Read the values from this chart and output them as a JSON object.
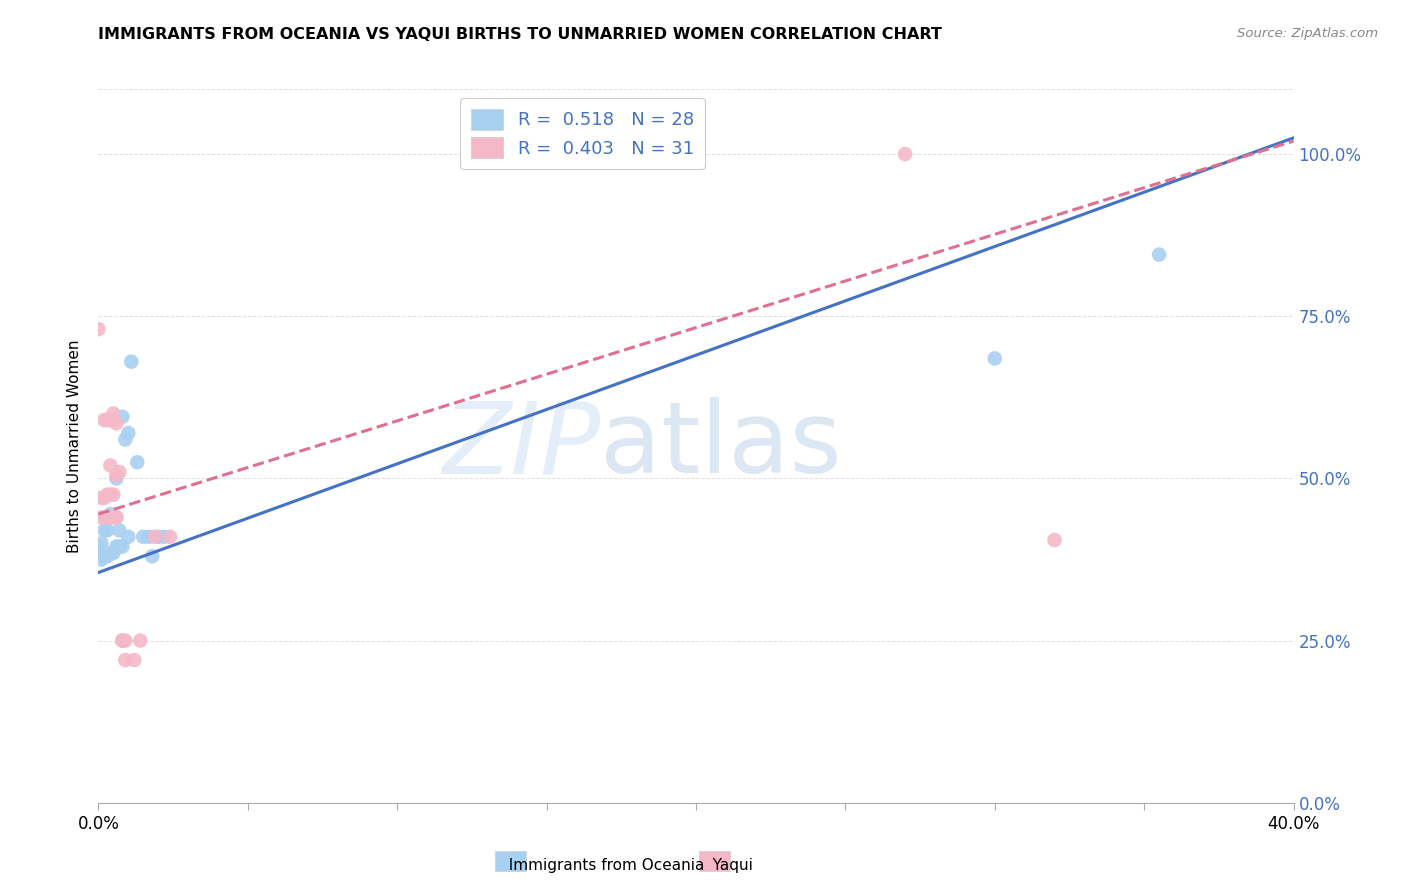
{
  "title": "IMMIGRANTS FROM OCEANIA VS YAQUI BIRTHS TO UNMARRIED WOMEN CORRELATION CHART",
  "source": "Source: ZipAtlas.com",
  "xlabel_bottom": "Immigrants from Oceania",
  "xlabel_bottom2": "Yaqui",
  "ylabel": "Births to Unmarried Women",
  "xmin": 0.0,
  "xmax": 0.4,
  "ymin": 0.0,
  "ymax": 1.1,
  "watermark_zip": "ZIP",
  "watermark_atlas": "atlas",
  "blue_color": "#a8d0f0",
  "pink_color": "#f5b8c8",
  "blue_line_color": "#4472c4",
  "pink_line_color": "#e07090",
  "legend_R1": "R =  0.518",
  "legend_N1": "N = 28",
  "legend_R2": "R =  0.403",
  "legend_N2": "N = 31",
  "blue_scatter_x": [
    0.0,
    0.001,
    0.001,
    0.002,
    0.002,
    0.003,
    0.003,
    0.004,
    0.004,
    0.005,
    0.006,
    0.006,
    0.007,
    0.007,
    0.008,
    0.008,
    0.009,
    0.01,
    0.01,
    0.011,
    0.013,
    0.015,
    0.017,
    0.018,
    0.02,
    0.022,
    0.3,
    0.355
  ],
  "blue_scatter_y": [
    0.395,
    0.375,
    0.4,
    0.38,
    0.42,
    0.38,
    0.42,
    0.385,
    0.445,
    0.385,
    0.395,
    0.5,
    0.42,
    0.395,
    0.395,
    0.595,
    0.56,
    0.57,
    0.41,
    0.68,
    0.525,
    0.41,
    0.41,
    0.38,
    0.41,
    0.41,
    0.685,
    0.845
  ],
  "pink_scatter_x": [
    0.0,
    0.001,
    0.001,
    0.002,
    0.002,
    0.002,
    0.003,
    0.003,
    0.003,
    0.004,
    0.004,
    0.004,
    0.004,
    0.005,
    0.005,
    0.005,
    0.006,
    0.006,
    0.006,
    0.006,
    0.007,
    0.008,
    0.008,
    0.009,
    0.009,
    0.012,
    0.014,
    0.019,
    0.024,
    0.27,
    0.32
  ],
  "pink_scatter_y": [
    0.73,
    0.44,
    0.47,
    0.44,
    0.47,
    0.59,
    0.44,
    0.475,
    0.59,
    0.59,
    0.44,
    0.475,
    0.52,
    0.6,
    0.44,
    0.475,
    0.44,
    0.505,
    0.585,
    0.44,
    0.51,
    0.25,
    0.25,
    0.25,
    0.22,
    0.22,
    0.25,
    0.41,
    0.41,
    1.0,
    0.405
  ],
  "blue_trend_x": [
    0.0,
    0.4
  ],
  "blue_trend_y": [
    0.355,
    1.025
  ],
  "pink_trend_x": [
    0.0,
    0.4
  ],
  "pink_trend_y": [
    0.445,
    1.02
  ],
  "ytick_labels": [
    "0.0%",
    "25.0%",
    "50.0%",
    "75.0%",
    "100.0%"
  ],
  "ytick_vals": [
    0.0,
    0.25,
    0.5,
    0.75,
    1.0
  ],
  "xtick_vals": [
    0.0,
    0.05,
    0.1,
    0.15,
    0.2,
    0.25,
    0.3,
    0.35,
    0.4
  ],
  "background_color": "#ffffff",
  "grid_color": "#e0e0e0"
}
